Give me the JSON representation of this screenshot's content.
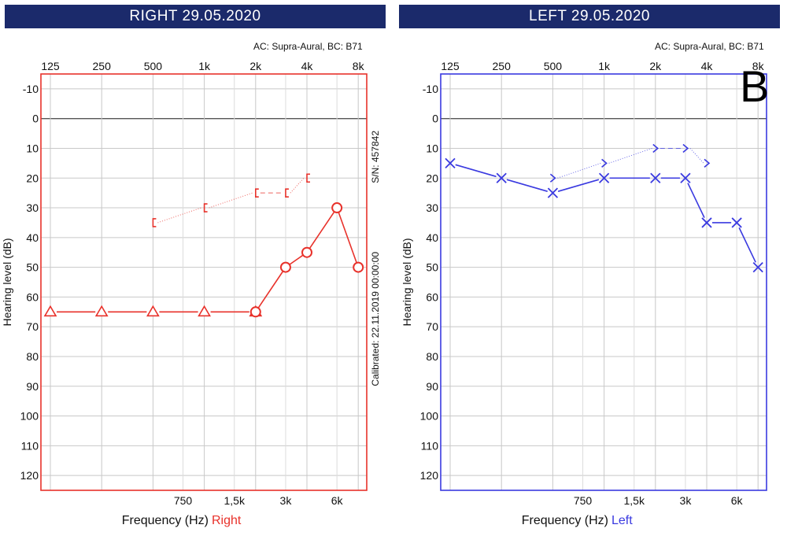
{
  "letter": "B",
  "chart_data": [
    {
      "type": "line",
      "title": "RIGHT  29.05.2020",
      "subtitle": "AC: Supra-Aural, BC: B71",
      "xlabel": "Frequency (Hz)",
      "xlabel_suffix": "Right",
      "ylabel": "Hearing level (dB)",
      "side_text_top": "S/N: 457842",
      "side_text_bottom": "Calibrated: 22.11.2019 00:00:00",
      "x_scale": "log2",
      "x_ticks_top": [
        {
          "f": 125,
          "label": "125"
        },
        {
          "f": 250,
          "label": "250"
        },
        {
          "f": 500,
          "label": "500"
        },
        {
          "f": 1000,
          "label": "1k"
        },
        {
          "f": 2000,
          "label": "2k"
        },
        {
          "f": 4000,
          "label": "4k"
        },
        {
          "f": 8000,
          "label": "8k"
        }
      ],
      "x_ticks_bottom": [
        {
          "f": 750,
          "label": "750"
        },
        {
          "f": 1500,
          "label": "1,5k"
        },
        {
          "f": 3000,
          "label": "3k"
        },
        {
          "f": 6000,
          "label": "6k"
        }
      ],
      "y_ticks": [
        -10,
        0,
        10,
        20,
        30,
        40,
        50,
        60,
        70,
        80,
        90,
        100,
        110,
        120
      ],
      "ylim": [
        -15,
        125
      ],
      "grid": true,
      "color": "#e8322b",
      "series": [
        {
          "name": "AC",
          "marker": "triangle",
          "line": "solid",
          "x": [
            125,
            250,
            500,
            1000,
            2000
          ],
          "y": [
            65,
            65,
            65,
            65,
            65
          ]
        },
        {
          "name": "AC",
          "marker": "circle",
          "line": "solid",
          "x": [
            2000,
            3000,
            4000,
            6000,
            8000
          ],
          "y": [
            65,
            50,
            45,
            30,
            50
          ]
        },
        {
          "name": "BC",
          "marker": "bracket-right",
          "line": "dotted",
          "x": [
            500,
            1000,
            2000,
            3000,
            4000
          ],
          "y": [
            35,
            30,
            25,
            25,
            20
          ]
        }
      ]
    },
    {
      "type": "line",
      "title": "LEFT  29.05.2020",
      "subtitle": "AC: Supra-Aural, BC: B71",
      "xlabel": "Frequency (Hz)",
      "xlabel_suffix": "Left",
      "ylabel": "Hearing level (dB)",
      "x_scale": "log2",
      "x_ticks_top": [
        {
          "f": 125,
          "label": "125"
        },
        {
          "f": 250,
          "label": "250"
        },
        {
          "f": 500,
          "label": "500"
        },
        {
          "f": 1000,
          "label": "1k"
        },
        {
          "f": 2000,
          "label": "2k"
        },
        {
          "f": 4000,
          "label": "4k"
        },
        {
          "f": 8000,
          "label": "8k"
        }
      ],
      "x_ticks_bottom": [
        {
          "f": 750,
          "label": "750"
        },
        {
          "f": 1500,
          "label": "1,5k"
        },
        {
          "f": 3000,
          "label": "3k"
        },
        {
          "f": 6000,
          "label": "6k"
        }
      ],
      "y_ticks": [
        -10,
        0,
        10,
        20,
        30,
        40,
        50,
        60,
        70,
        80,
        90,
        100,
        110,
        120
      ],
      "ylim": [
        -15,
        125
      ],
      "grid": true,
      "color": "#3a3ae0",
      "series": [
        {
          "name": "AC",
          "marker": "x",
          "line": "solid",
          "x": [
            125,
            250,
            500,
            1000,
            2000,
            3000,
            4000,
            6000,
            8000
          ],
          "y": [
            15,
            20,
            25,
            20,
            20,
            20,
            35,
            35,
            50
          ]
        },
        {
          "name": "BC",
          "marker": "chevron-right",
          "line": "dotted",
          "x": [
            500,
            1000,
            2000,
            3000,
            4000
          ],
          "y": [
            20,
            15,
            10,
            10,
            15
          ]
        }
      ]
    }
  ]
}
